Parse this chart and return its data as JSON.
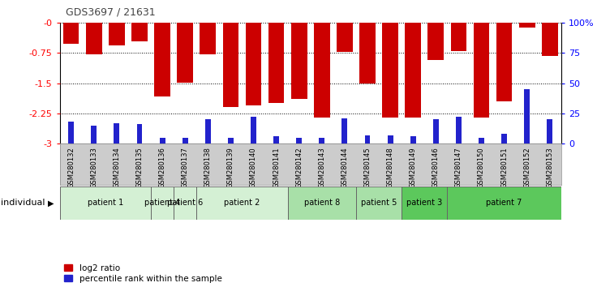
{
  "title": "GDS3697 / 21631",
  "samples": [
    "GSM280132",
    "GSM280133",
    "GSM280134",
    "GSM280135",
    "GSM280136",
    "GSM280137",
    "GSM280138",
    "GSM280139",
    "GSM280140",
    "GSM280141",
    "GSM280142",
    "GSM280143",
    "GSM280144",
    "GSM280145",
    "GSM280148",
    "GSM280149",
    "GSM280146",
    "GSM280147",
    "GSM280150",
    "GSM280151",
    "GSM280152",
    "GSM280153"
  ],
  "log2_ratio": [
    -0.52,
    -0.78,
    -0.55,
    -0.45,
    -1.82,
    -1.48,
    -0.78,
    -2.1,
    -2.05,
    -2.0,
    -1.9,
    -2.35,
    -0.72,
    -1.5,
    -2.36,
    -2.35,
    -0.92,
    -0.7,
    -2.35,
    -1.95,
    -0.12,
    -0.82
  ],
  "percentile": [
    18,
    15,
    17,
    16,
    5,
    5,
    20,
    5,
    22,
    6,
    5,
    5,
    21,
    7,
    7,
    6,
    20,
    22,
    5,
    8,
    45,
    20
  ],
  "patients": [
    {
      "label": "patient 1",
      "start": 0,
      "end": 4,
      "color": "#d4f0d4"
    },
    {
      "label": "patient 4",
      "start": 4,
      "end": 5,
      "color": "#d4f0d4"
    },
    {
      "label": "patient 6",
      "start": 5,
      "end": 6,
      "color": "#d4f0d4"
    },
    {
      "label": "patient 2",
      "start": 6,
      "end": 10,
      "color": "#d4f0d4"
    },
    {
      "label": "patient 8",
      "start": 10,
      "end": 13,
      "color": "#a8e0a8"
    },
    {
      "label": "patient 5",
      "start": 13,
      "end": 15,
      "color": "#a8e0a8"
    },
    {
      "label": "patient 3",
      "start": 15,
      "end": 17,
      "color": "#5cc85c"
    },
    {
      "label": "patient 7",
      "start": 17,
      "end": 22,
      "color": "#5cc85c"
    }
  ],
  "ylim_left": [
    -3,
    0
  ],
  "ylim_right": [
    0,
    100
  ],
  "yticks_left": [
    -3,
    -2.25,
    -1.5,
    -0.75,
    0
  ],
  "yticks_right": [
    0,
    25,
    50,
    75,
    100
  ],
  "bar_color": "#cc0000",
  "blue_color": "#2222cc",
  "bg_color": "#ffffff",
  "plot_bg": "#ffffff",
  "xtick_bg": "#cccccc",
  "legend_log2": "log2 ratio",
  "legend_pct": "percentile rank within the sample",
  "xlabel_individual": "individual",
  "title_color": "#444444",
  "grid_color": "#000000"
}
